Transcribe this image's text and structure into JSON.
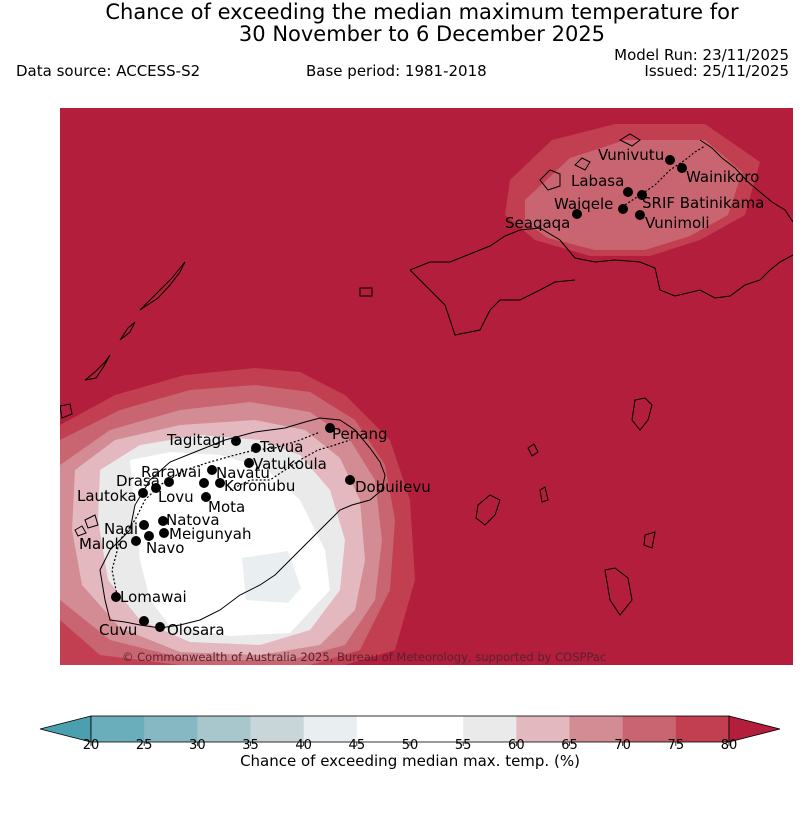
{
  "header": {
    "title_line1": "Chance of exceeding the median maximum temperature for",
    "title_line2": "30 November to 6 December 2025",
    "data_source": "Data source: ACCESS-S2",
    "base_period": "Base period: 1981-2018",
    "model_run": "Model Run: 23/11/2025",
    "issued": "Issued: 25/11/2025"
  },
  "map": {
    "copyright": "© Commonwealth of Australia 2025, Bureau of Meteorology, supported by COSPPac",
    "stations": [
      {
        "name": "Vunivutu"
      },
      {
        "name": "Wainikoro"
      },
      {
        "name": "Labasa"
      },
      {
        "name": "Waiqele"
      },
      {
        "name": "SRIF Batinikama"
      },
      {
        "name": "Seaqaqa"
      },
      {
        "name": "Vunimoli"
      },
      {
        "name": "Penang"
      },
      {
        "name": "Tagitagi"
      },
      {
        "name": "Tavua"
      },
      {
        "name": "Vatukoula"
      },
      {
        "name": "Rarawai"
      },
      {
        "name": "Navatu"
      },
      {
        "name": "Drasa"
      },
      {
        "name": "Koronubu"
      },
      {
        "name": "Lautoka"
      },
      {
        "name": "Lovu"
      },
      {
        "name": "Dobuilevu"
      },
      {
        "name": "Mota"
      },
      {
        "name": "Natova"
      },
      {
        "name": "Nadi"
      },
      {
        "name": "Meigunyah"
      },
      {
        "name": "Malolo"
      },
      {
        "name": "Navo"
      },
      {
        "name": "Lomawai"
      },
      {
        "name": "Cuvu"
      },
      {
        "name": "Olosara"
      }
    ]
  },
  "legend": {
    "ticks": [
      "20",
      "25",
      "30",
      "35",
      "40",
      "45",
      "50",
      "55",
      "60",
      "65",
      "70",
      "75",
      "80"
    ],
    "bins": [
      {
        "color": "#6aadbb"
      },
      {
        "color": "#86b8c3"
      },
      {
        "color": "#a7c7cc"
      },
      {
        "color": "#c8d6da"
      },
      {
        "color": "#e9eef0"
      },
      {
        "color": "#ffffff"
      },
      {
        "color": "#ffffff"
      },
      {
        "color": "#ebeaeb"
      },
      {
        "color": "#e3b8bf"
      },
      {
        "color": "#d38b94"
      },
      {
        "color": "#c96570"
      },
      {
        "color": "#c23f51"
      }
    ],
    "under_color": "#4aa0af",
    "over_color": "#b21e3b",
    "label": "Chance of exceeding median max. temp. (%)"
  }
}
